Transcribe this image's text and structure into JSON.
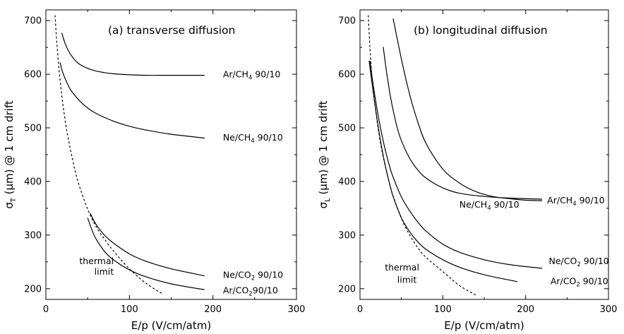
{
  "chart_data": [
    {
      "type": "line",
      "title": "(a) transverse diffusion",
      "xlabel": "E/p  (V/cm/atm)",
      "ylabel_prefix": "σ",
      "ylabel_sub": "T",
      "ylabel_rest": " (μm) @ 1 cm drift",
      "xlim": [
        0,
        300
      ],
      "ylim": [
        180,
        720
      ],
      "xticks": [
        0,
        100,
        200,
        300
      ],
      "yticks": [
        200,
        300,
        400,
        500,
        600,
        700
      ],
      "series": [
        {
          "name": "Ar/CH",
          "name_sub": "4",
          "name_suffix": " 90/10",
          "label_x": 212,
          "label_y": 600,
          "style": "solid",
          "x": [
            19,
            22,
            25,
            30,
            35,
            40,
            50,
            60,
            70,
            80,
            100,
            120,
            150,
            190
          ],
          "y": [
            677,
            662,
            650,
            636,
            626,
            619,
            611,
            606,
            603,
            601,
            599,
            598,
            598,
            598
          ]
        },
        {
          "name": "Ne/CH",
          "name_sub": "4",
          "name_suffix": " 90/10",
          "label_x": 212,
          "label_y": 482,
          "style": "solid",
          "x": [
            17,
            20,
            25,
            30,
            40,
            50,
            60,
            80,
            100,
            120,
            150,
            190
          ],
          "y": [
            622,
            604,
            585,
            570,
            551,
            537,
            527,
            513,
            503,
            496,
            488,
            481
          ]
        },
        {
          "name": "Ne/CO",
          "name_sub": "2",
          "name_suffix": " 90/10",
          "label_x": 212,
          "label_y": 226,
          "style": "solid",
          "x": [
            53,
            60,
            70,
            80,
            100,
            120,
            150,
            190
          ],
          "y": [
            341,
            320,
            300,
            286,
            265,
            251,
            237,
            224
          ]
        },
        {
          "name": "Ar/CO",
          "name_sub": "2",
          "name_suffix": "90/10",
          "label_x": 212,
          "label_y": 197,
          "style": "solid",
          "x": [
            50,
            55,
            60,
            70,
            80,
            100,
            120,
            150,
            190
          ],
          "y": [
            332,
            310,
            293,
            270,
            255,
            235,
            222,
            209,
            198
          ]
        },
        {
          "name": "thermal",
          "name2": "limit",
          "label_x": 40,
          "label_y": 252,
          "label2_x": 58,
          "label2_y": 232,
          "style": "dashed",
          "x": [
            11,
            13,
            16,
            20,
            25,
            30,
            35,
            40,
            50,
            60,
            70,
            80,
            100,
            120,
            140
          ],
          "y": [
            710,
            660,
            605,
            548,
            495,
            455,
            420,
            392,
            348,
            316,
            293,
            272,
            237,
            210,
            190
          ]
        }
      ]
    },
    {
      "type": "line",
      "title": "(b) longitudinal diffusion",
      "xlabel": "E/p  (V/cm/atm)",
      "ylabel_prefix": "σ",
      "ylabel_sub": "L",
      "ylabel_rest": " (μm) @ 1 cm drift",
      "xlim": [
        0,
        300
      ],
      "ylim": [
        180,
        720
      ],
      "xticks": [
        0,
        100,
        200,
        300
      ],
      "yticks": [
        200,
        300,
        400,
        500,
        600,
        700
      ],
      "series": [
        {
          "name": "Ar/CH",
          "name_sub": "4",
          "name_suffix": " 90/10",
          "label_x": 226,
          "label_y": 365,
          "style": "solid",
          "x": [
            40,
            50,
            60,
            70,
            80,
            100,
            120,
            140,
            160,
            180,
            200,
            220
          ],
          "y": [
            704,
            628,
            562,
            510,
            470,
            423,
            397,
            381,
            372,
            368,
            365,
            364
          ]
        },
        {
          "name": "Ne/CH",
          "name_sub": "4",
          "name_suffix": " 90/10",
          "label_x": 120,
          "label_y": 357,
          "style": "solid",
          "x": [
            28,
            32,
            36,
            40,
            45,
            50,
            60,
            70,
            80,
            100,
            120,
            150,
            180,
            220
          ],
          "y": [
            651,
            605,
            565,
            533,
            500,
            476,
            443,
            421,
            406,
            388,
            378,
            372,
            369,
            367
          ]
        },
        {
          "name": "Ne/CO",
          "name_sub": "2",
          "name_suffix": " 90/10",
          "label_x": 228,
          "label_y": 252,
          "style": "solid",
          "x": [
            12,
            15,
            20,
            25,
            30,
            35,
            40,
            50,
            60,
            70,
            80,
            100,
            120,
            150,
            180,
            220
          ],
          "y": [
            625,
            590,
            540,
            498,
            462,
            432,
            408,
            371,
            345,
            324,
            307,
            283,
            268,
            254,
            245,
            238
          ]
        },
        {
          "name": "Ar/CO",
          "name_sub": "2",
          "name_suffix": " 90/10",
          "label_x": 230,
          "label_y": 214,
          "style": "solid",
          "x": [
            11,
            15,
            20,
            25,
            30,
            35,
            40,
            50,
            60,
            70,
            80,
            100,
            120,
            150,
            190
          ],
          "y": [
            625,
            578,
            522,
            474,
            433,
            400,
            372,
            332,
            306,
            287,
            273,
            254,
            240,
            226,
            213
          ]
        },
        {
          "name": "thermal",
          "name2": "limit",
          "label_x": 30,
          "label_y": 240,
          "label2_x": 45,
          "label2_y": 217,
          "style": "dashed",
          "x": [
            10,
            12,
            15,
            20,
            25,
            30,
            35,
            40,
            50,
            60,
            70,
            80,
            100,
            120,
            140
          ],
          "y": [
            710,
            650,
            585,
            520,
            470,
            432,
            400,
            373,
            331,
            300,
            276,
            258,
            232,
            206,
            188
          ]
        }
      ]
    }
  ]
}
